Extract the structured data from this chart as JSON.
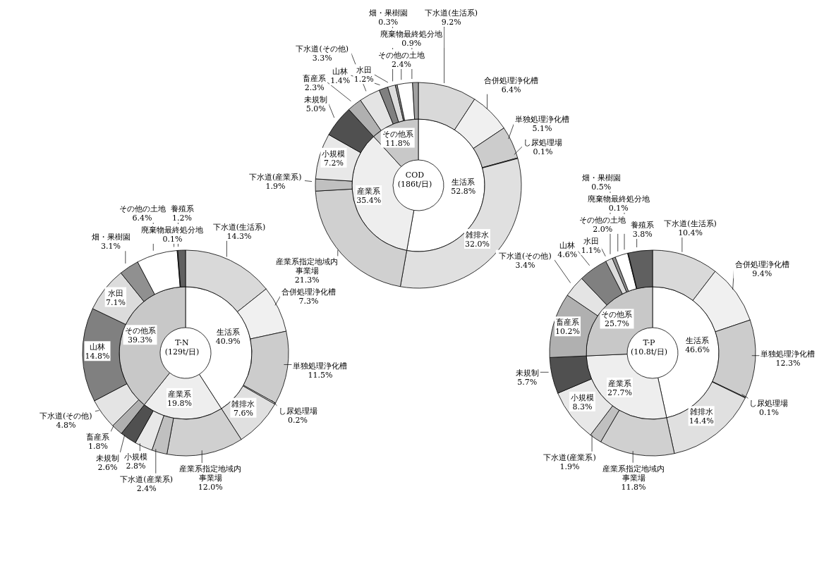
{
  "chart_data": [
    {
      "type": "donut",
      "title": "COD",
      "subtitle": "(186t/日)",
      "categories": [
        "生活系",
        "産業系",
        "その他系"
      ],
      "values": [
        52.8,
        35.4,
        11.8
      ],
      "value_labels": [
        "52.8%",
        "35.4%",
        "11.8%"
      ],
      "colors": [
        "#ffffff",
        "#eeeeee",
        "#c8c8c8"
      ]
    },
    {
      "type": "donut",
      "categories": [
        "下水道(生活系)",
        "合併処理浄化槽",
        "単独処理浄化槽",
        "し尿処理場",
        "雑排水",
        "産業系指定地域内事業場",
        "下水道(産業系)",
        "小規模",
        "未規制",
        "畜産系",
        "下水道(その他)",
        "山林",
        "水田",
        "畑・果樹園",
        "その他の土地",
        "廃棄物最終処分地"
      ],
      "values": [
        9.2,
        6.4,
        5.1,
        0.1,
        32.0,
        21.3,
        1.9,
        7.2,
        5.0,
        2.3,
        3.3,
        1.4,
        1.2,
        0.3,
        2.4,
        0.9
      ],
      "value_labels": [
        "9.2%",
        "6.4%",
        "5.1%",
        "0.1%",
        "32.0%",
        "21.3%",
        "1.9%",
        "7.2%",
        "5.0%",
        "2.3%",
        "3.3%",
        "1.4%",
        "1.2%",
        "0.3%",
        "2.4%",
        "0.9%"
      ],
      "colors": [
        "#d9d9d9",
        "#f0f0f0",
        "#cccccc",
        "#ffffff",
        "#e0e0e0",
        "#d0d0d0",
        "#c0c0c0",
        "#e8e8e8",
        "#505050",
        "#b0b0b0",
        "#e4e4e4",
        "#808080",
        "#dcdcdc",
        "#909090",
        "#ffffff",
        "#a0a0a0"
      ]
    },
    {
      "type": "donut",
      "title": "T-N",
      "subtitle": "(129t/日)",
      "categories": [
        "生活系",
        "産業系",
        "その他系"
      ],
      "values": [
        40.9,
        19.8,
        39.3
      ],
      "value_labels": [
        "40.9%",
        "19.8%",
        "39.3%"
      ],
      "colors": [
        "#ffffff",
        "#eeeeee",
        "#c8c8c8"
      ]
    },
    {
      "type": "donut",
      "categories": [
        "下水道(生活系)",
        "合併処理浄化槽",
        "単独処理浄化槽",
        "し尿処理場",
        "雑排水",
        "産業系指定地域内事業場",
        "下水道(産業系)",
        "小規模",
        "未規制",
        "畜産系",
        "下水道(その他)",
        "山林",
        "水田",
        "畑・果樹園",
        "その他の土地",
        "廃棄物最終処分地",
        "養殖系"
      ],
      "values": [
        14.3,
        7.3,
        11.5,
        0.2,
        7.6,
        12.0,
        2.4,
        2.8,
        2.6,
        1.8,
        4.8,
        14.8,
        7.1,
        3.1,
        6.4,
        0.1,
        1.2
      ],
      "value_labels": [
        "14.3%",
        "7.3%",
        "11.5%",
        "0.2%",
        "7.6%",
        "12.0%",
        "2.4%",
        "2.8%",
        "2.6%",
        "1.8%",
        "4.8%",
        "14.8%",
        "7.1%",
        "3.1%",
        "6.4%",
        "0.1%",
        "1.2%"
      ],
      "colors": [
        "#d9d9d9",
        "#f0f0f0",
        "#cccccc",
        "#ffffff",
        "#e0e0e0",
        "#d0d0d0",
        "#c0c0c0",
        "#e8e8e8",
        "#505050",
        "#b0b0b0",
        "#e4e4e4",
        "#808080",
        "#dcdcdc",
        "#909090",
        "#ffffff",
        "#a0a0a0",
        "#606060"
      ]
    },
    {
      "type": "donut",
      "title": "T-P",
      "subtitle": "(10.8t/日)",
      "categories": [
        "生活系",
        "産業系",
        "その他系"
      ],
      "values": [
        46.6,
        27.7,
        25.7
      ],
      "value_labels": [
        "46.6%",
        "27.7%",
        "25.7%"
      ],
      "colors": [
        "#ffffff",
        "#eeeeee",
        "#c8c8c8"
      ]
    },
    {
      "type": "donut",
      "categories": [
        "下水道(生活系)",
        "合併処理浄化槽",
        "単独処理浄化槽",
        "し尿処理場",
        "雑排水",
        "産業系指定地域内事業場",
        "下水道(産業系)",
        "小規模",
        "未規制",
        "畜産系",
        "下水道(その他)",
        "山林",
        "水田",
        "畑・果樹園",
        "その他の土地",
        "廃棄物最終処分地",
        "養殖系"
      ],
      "values": [
        10.4,
        9.4,
        12.3,
        0.1,
        14.4,
        11.8,
        1.9,
        8.3,
        5.7,
        10.2,
        3.4,
        4.6,
        1.1,
        0.5,
        2.0,
        0.1,
        3.8
      ],
      "value_labels": [
        "10.4%",
        "9.4%",
        "12.3%",
        "0.1%",
        "14.4%",
        "11.8%",
        "1.9%",
        "8.3%",
        "5.7%",
        "10.2%",
        "3.4%",
        "4.6%",
        "1.1%",
        "0.5%",
        "2.0%",
        "0.1%",
        "3.8%"
      ],
      "colors": [
        "#d9d9d9",
        "#f0f0f0",
        "#cccccc",
        "#ffffff",
        "#e0e0e0",
        "#d0d0d0",
        "#c0c0c0",
        "#e8e8e8",
        "#505050",
        "#b0b0b0",
        "#e4e4e4",
        "#808080",
        "#dcdcdc",
        "#909090",
        "#ffffff",
        "#a0a0a0",
        "#606060"
      ]
    }
  ]
}
